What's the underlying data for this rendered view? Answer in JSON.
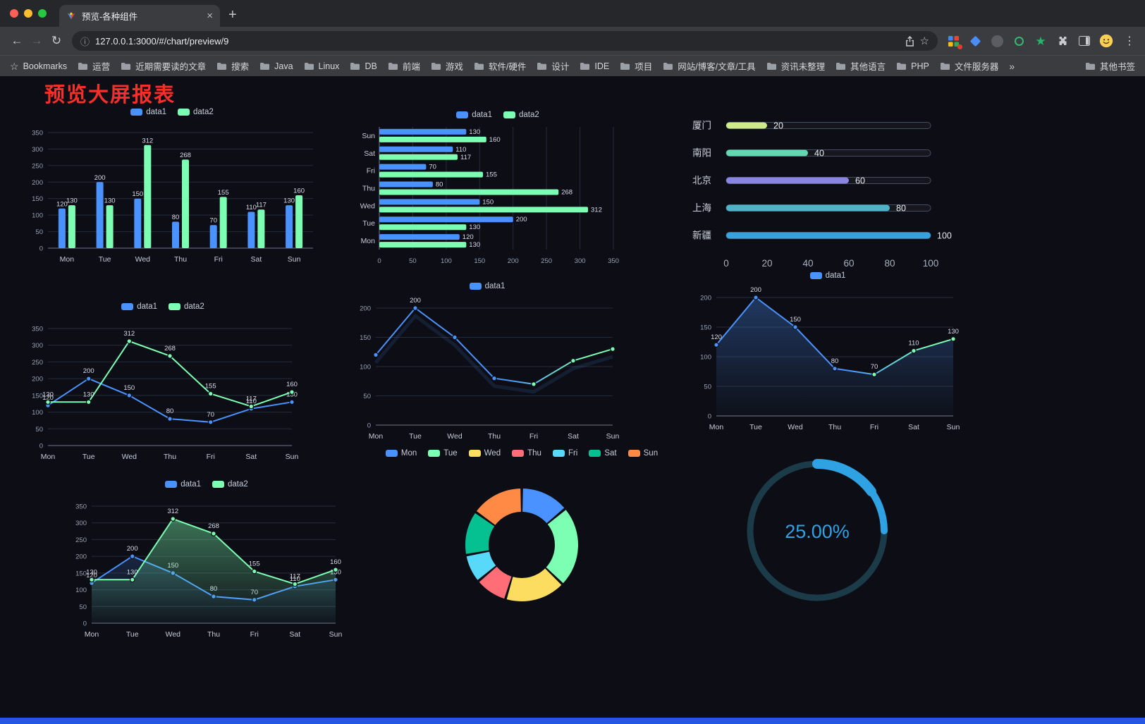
{
  "browser": {
    "tab": {
      "title": "预览-各种组件"
    },
    "toolbar": {
      "url": "127.0.0.1:3000/#/chart/preview/9"
    },
    "icons": {
      "back": "←",
      "forward": "→",
      "reload": "↻",
      "info": "ⓘ",
      "star": "☆",
      "menu": "⋮",
      "bookmarks_star": "☆",
      "close_tab": "×",
      "new_tab": "+",
      "overflow": "»",
      "ext_star": "★"
    },
    "bookmarks": {
      "bookmarks_label": "Bookmarks",
      "items": [
        "运营",
        "近期需要读的文章",
        "搜索",
        "Java",
        "Linux",
        "DB",
        "前端",
        "游戏",
        "软件/硬件",
        "设计",
        "IDE",
        "项目",
        "网站/博客/文章/工具",
        "资讯未整理",
        "其他语言",
        "PHP",
        "文件服务器"
      ],
      "overflow_label": "»",
      "other_bookmarks_label": "其他书签"
    }
  },
  "page": {
    "title": "预览大屏报表",
    "title_color": "#f5302a",
    "background": "#0d0e15"
  },
  "chart_data": [
    {
      "id": "grouped-bar-vertical",
      "type": "bar",
      "orientation": "vertical",
      "categories": [
        "Mon",
        "Tue",
        "Wed",
        "Thu",
        "Fri",
        "Sat",
        "Sun"
      ],
      "series": [
        {
          "name": "data1",
          "color": "#4992ff",
          "values": [
            120,
            200,
            150,
            80,
            70,
            110,
            130
          ]
        },
        {
          "name": "data2",
          "color": "#7cffb2",
          "values": [
            130,
            130,
            312,
            268,
            155,
            117,
            160
          ]
        }
      ],
      "ylim": [
        0,
        350
      ],
      "ytick": 50,
      "grid": true,
      "legend_position": "top"
    },
    {
      "id": "grouped-bar-horizontal",
      "type": "bar",
      "orientation": "horizontal",
      "categories": [
        "Mon",
        "Tue",
        "Wed",
        "Thu",
        "Fri",
        "Sat",
        "Sun"
      ],
      "series": [
        {
          "name": "data1",
          "color": "#4992ff",
          "values": [
            120,
            200,
            150,
            80,
            70,
            110,
            130
          ]
        },
        {
          "name": "data2",
          "color": "#7cffb2",
          "values": [
            130,
            130,
            312,
            268,
            155,
            117,
            160
          ]
        }
      ],
      "xlim": [
        0,
        350
      ],
      "xtick": 50,
      "grid": true,
      "legend_position": "top"
    },
    {
      "id": "city-progress-bars",
      "type": "bar",
      "variant": "progress",
      "rows": [
        {
          "label": "厦门",
          "value": 20,
          "color": "#cdeb8a"
        },
        {
          "label": "南阳",
          "value": 40,
          "color": "#63d6b2"
        },
        {
          "label": "北京",
          "value": 60,
          "color": "#8a84e2"
        },
        {
          "label": "上海",
          "value": 80,
          "color": "#4fb3c8"
        },
        {
          "label": "新疆",
          "value": 100,
          "color": "#37a2dd"
        }
      ],
      "xlim": [
        0,
        100
      ],
      "xticks": [
        0,
        20,
        40,
        60,
        80,
        100
      ]
    },
    {
      "id": "two-series-line",
      "type": "line",
      "labels": "all",
      "categories": [
        "Mon",
        "Tue",
        "Wed",
        "Thu",
        "Fri",
        "Sat",
        "Sun"
      ],
      "series": [
        {
          "name": "data1",
          "color": "#4992ff",
          "values": [
            120,
            200,
            150,
            80,
            70,
            110,
            130
          ]
        },
        {
          "name": "data2",
          "color": "#7cffb2",
          "values": [
            130,
            130,
            312,
            268,
            155,
            117,
            160
          ]
        }
      ],
      "ylim": [
        0,
        350
      ],
      "ytick": 50,
      "grid": true,
      "legend_position": "top"
    },
    {
      "id": "gradient-line",
      "type": "line",
      "labels": "max",
      "categories": [
        "Mon",
        "Tue",
        "Wed",
        "Thu",
        "Fri",
        "Sat",
        "Sun"
      ],
      "series": [
        {
          "name": "data1",
          "color": "#4992ff",
          "color2": "#7cffb2",
          "gradient": true,
          "shadow": true,
          "values": [
            120,
            200,
            150,
            80,
            70,
            110,
            130
          ]
        }
      ],
      "ylim": [
        0,
        200
      ],
      "ytick": 50,
      "grid": true,
      "legend_position": "top"
    },
    {
      "id": "area-line",
      "type": "line",
      "labels": "all",
      "categories": [
        "Mon",
        "Tue",
        "Wed",
        "Thu",
        "Fri",
        "Sat",
        "Sun"
      ],
      "series": [
        {
          "name": "data1",
          "color": "#4992ff",
          "color2": "#7cffb2",
          "gradient": true,
          "area": true,
          "area_color": "#4992ff",
          "area_opacity": 0.32,
          "values": [
            120,
            200,
            150,
            80,
            70,
            110,
            130
          ]
        }
      ],
      "ylim": [
        0,
        200
      ],
      "ytick": 50,
      "grid": true,
      "legend_position": "top"
    },
    {
      "id": "two-series-area-line",
      "type": "line",
      "labels": "all",
      "categories": [
        "Mon",
        "Tue",
        "Wed",
        "Thu",
        "Fri",
        "Sat",
        "Sun"
      ],
      "series": [
        {
          "name": "data1",
          "color": "#4992ff",
          "area": true,
          "area_color": "#4992ff",
          "area_opacity": 0.18,
          "values": [
            120,
            200,
            150,
            80,
            70,
            110,
            130
          ]
        },
        {
          "name": "data2",
          "color": "#7cffb2",
          "area": true,
          "area_color": "#7cffb2",
          "area_opacity": 0.42,
          "values": [
            130,
            130,
            312,
            268,
            155,
            117,
            160
          ]
        }
      ],
      "ylim": [
        0,
        350
      ],
      "ytick": 50,
      "grid": true,
      "legend_position": "top"
    },
    {
      "id": "weekday-donut",
      "type": "pie",
      "variant": "donut",
      "labels": [
        "Mon",
        "Tue",
        "Wed",
        "Thu",
        "Fri",
        "Sat",
        "Sun"
      ],
      "values": [
        120,
        200,
        150,
        80,
        70,
        110,
        130
      ],
      "colors": [
        "#4992ff",
        "#7cffb2",
        "#fddd60",
        "#ff6e76",
        "#58d9f9",
        "#05c091",
        "#ff8a45"
      ],
      "legend_position": "top"
    },
    {
      "id": "progress-gauge",
      "type": "gauge",
      "value": 25,
      "max": 100,
      "display": "25.00%",
      "color": "#2fa2e4",
      "track_color": "#1b3b49"
    }
  ]
}
